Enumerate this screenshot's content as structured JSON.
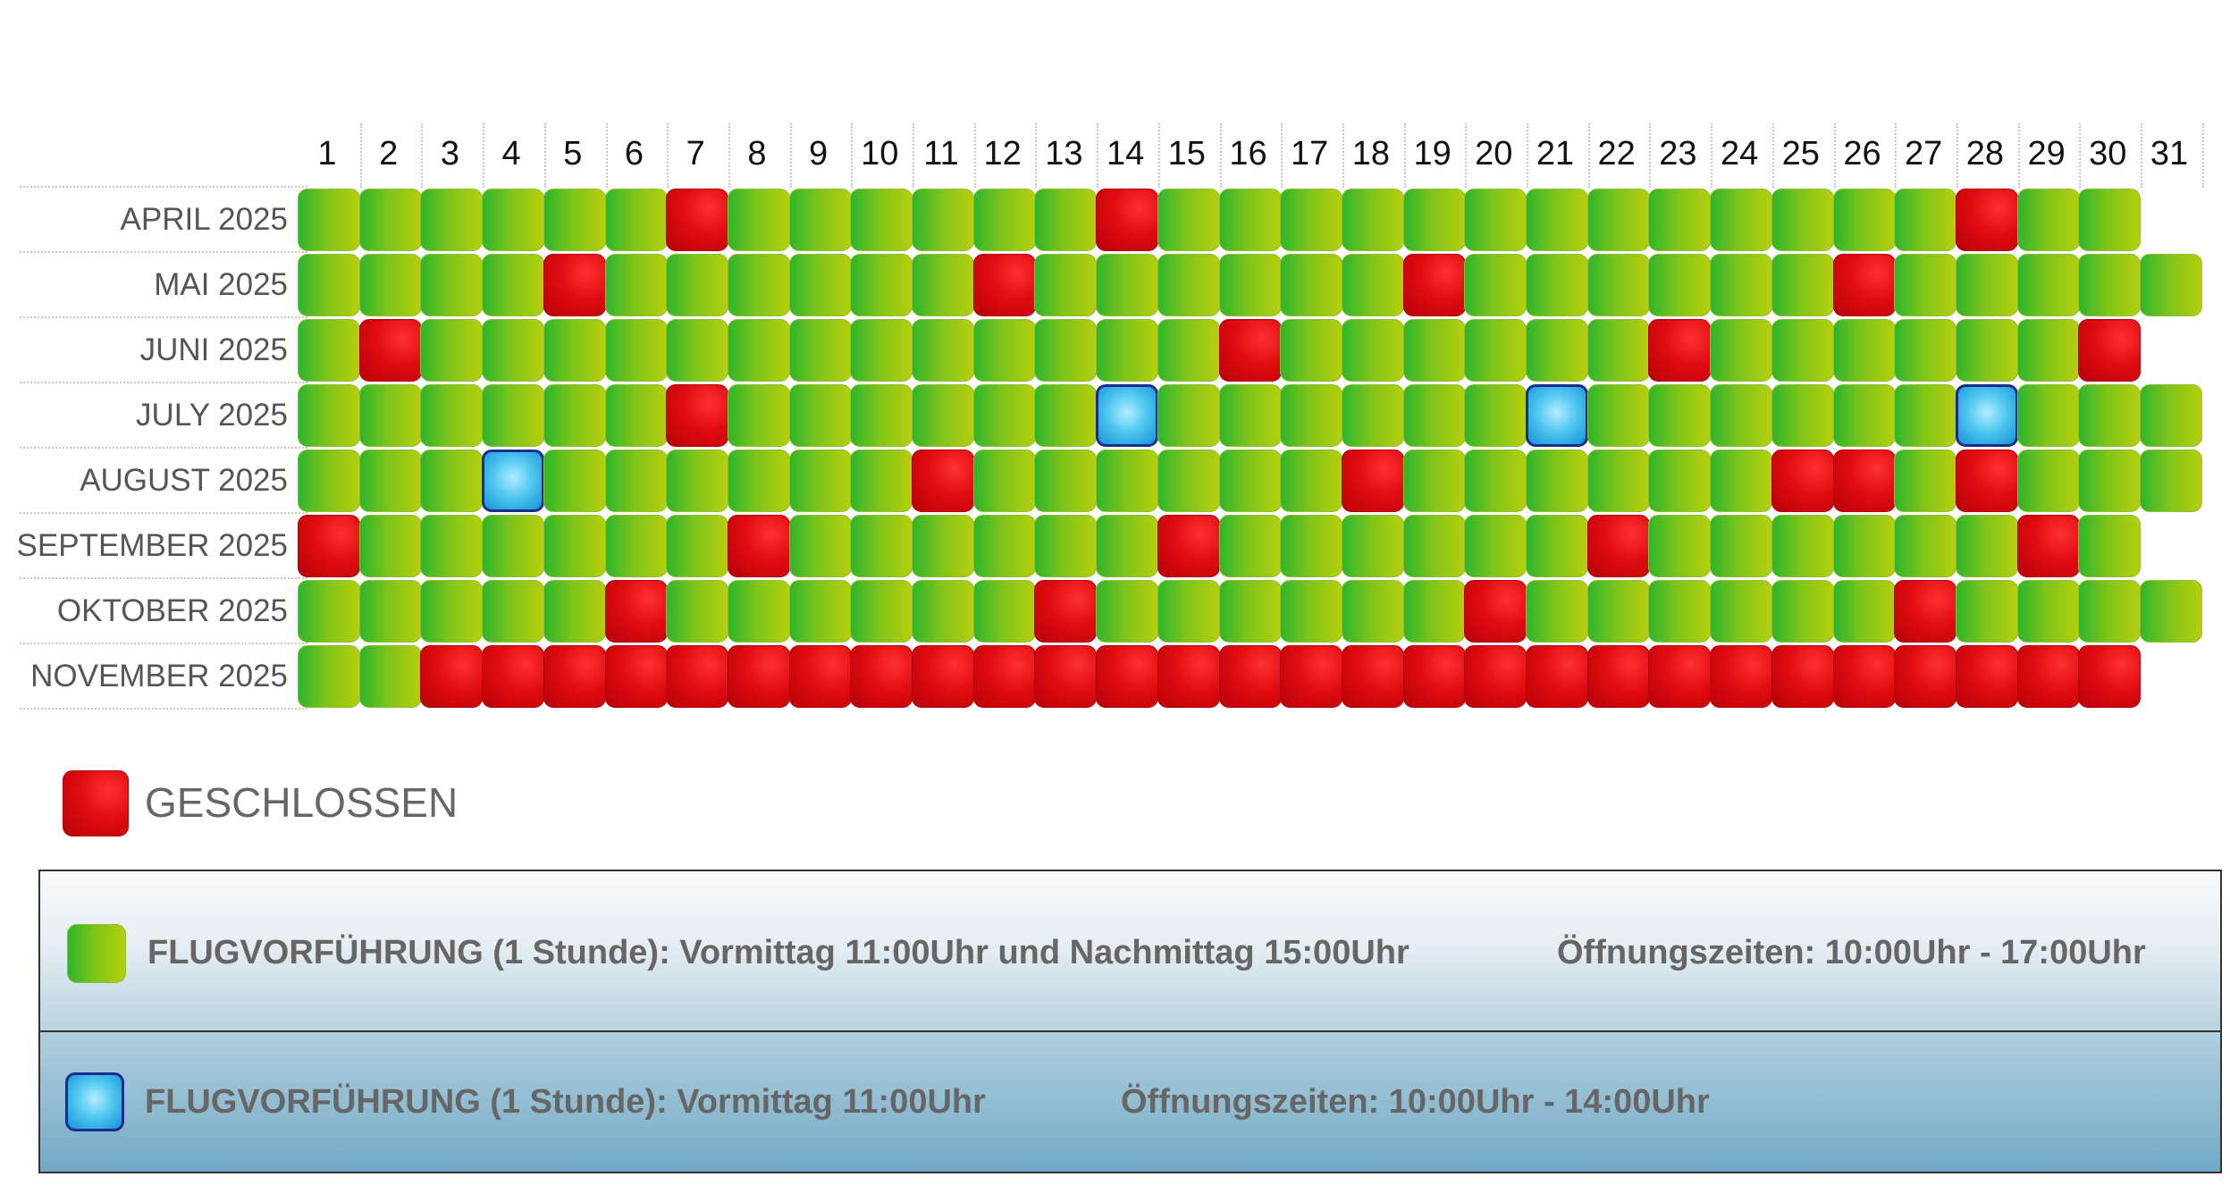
{
  "calendar": {
    "days": [
      "1",
      "2",
      "3",
      "4",
      "5",
      "6",
      "7",
      "8",
      "9",
      "10",
      "11",
      "12",
      "13",
      "14",
      "15",
      "16",
      "17",
      "18",
      "19",
      "20",
      "21",
      "22",
      "23",
      "24",
      "25",
      "26",
      "27",
      "28",
      "29",
      "30",
      "31"
    ],
    "months": [
      {
        "label": "APRIL 2025",
        "days_in_month": 30,
        "closed": [
          7,
          14,
          28
        ],
        "short": []
      },
      {
        "label": "MAI 2025",
        "days_in_month": 31,
        "closed": [
          5,
          12,
          19,
          26
        ],
        "short": []
      },
      {
        "label": "JUNI 2025",
        "days_in_month": 30,
        "closed": [
          2,
          16,
          23,
          30
        ],
        "short": []
      },
      {
        "label": "JULY 2025",
        "days_in_month": 31,
        "closed": [
          7
        ],
        "short": [
          14,
          21,
          28
        ]
      },
      {
        "label": "AUGUST 2025",
        "days_in_month": 31,
        "closed": [
          11,
          18,
          25,
          26,
          28
        ],
        "short": [
          4
        ]
      },
      {
        "label": "SEPTEMBER 2025",
        "days_in_month": 30,
        "closed": [
          1,
          8,
          15,
          22,
          29
        ],
        "short": []
      },
      {
        "label": "OKTOBER 2025",
        "days_in_month": 31,
        "closed": [
          6,
          13,
          20,
          27
        ],
        "short": []
      },
      {
        "label": "NOVEMBER 2025",
        "days_in_month": 30,
        "closed": [
          3,
          4,
          5,
          6,
          7,
          8,
          9,
          10,
          11,
          12,
          13,
          14,
          15,
          16,
          17,
          18,
          19,
          20,
          21,
          22,
          23,
          24,
          25,
          26,
          27,
          28,
          29,
          30
        ],
        "short": []
      }
    ]
  },
  "legend": {
    "closed_label": "GESCHLOSSEN",
    "open_demo": "FLUGVORFÜHRUNG (1 Stunde): Vormittag 11:00Uhr und Nachmittag 15:00Uhr",
    "open_hours": "Öffnungszeiten: 10:00Uhr - 17:00Uhr",
    "short_demo": "FLUGVORFÜHRUNG (1 Stunde): Vormittag 11:00Uhr",
    "short_hours": "Öffnungszeiten: 10:00Uhr - 14:00Uhr"
  },
  "colors": {
    "open": "#7cc41a",
    "closed": "#e00d10",
    "short": "#52c8f0"
  }
}
